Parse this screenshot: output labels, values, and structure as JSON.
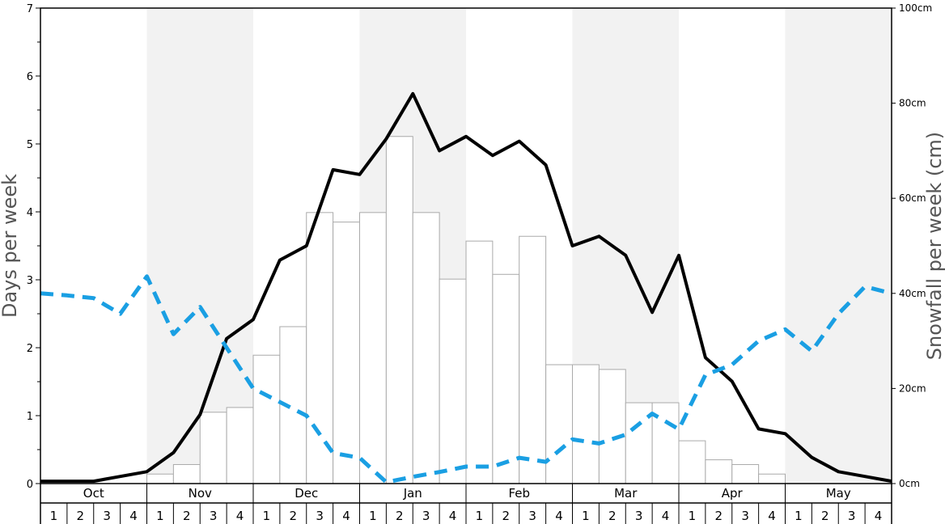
{
  "chart_data": {
    "type": "bar",
    "ylabel": "Days per week",
    "y2label": "Snowfall per week (cm)",
    "ylim": [
      0,
      7
    ],
    "y2lim": [
      0,
      100
    ],
    "y_ticks": [
      "0",
      "1",
      "2",
      "3",
      "4",
      "5",
      "6",
      "7"
    ],
    "y2_ticks": [
      "0cm",
      "20cm",
      "40cm",
      "60cm",
      "80cm",
      "100cm"
    ],
    "months": [
      "Oct",
      "Nov",
      "Dec",
      "Jan",
      "Feb",
      "Mar",
      "Apr",
      "May"
    ],
    "week_labels": [
      "1",
      "2",
      "3",
      "4"
    ],
    "colors": {
      "shade": "#f2f2f2",
      "bar_fill": "#ffffff",
      "bar_stroke": "#aaaaaa",
      "line_main": "#000000",
      "line_dashed": "#1a9fe3"
    },
    "series": [
      {
        "type": "bar",
        "axis": "right",
        "values": [
          0,
          0,
          0,
          0,
          2,
          4,
          15,
          16,
          27,
          33,
          57,
          55,
          57,
          73,
          57,
          43,
          51,
          44,
          52,
          25,
          25,
          24,
          17,
          17,
          9,
          5,
          4,
          2,
          0,
          0,
          0,
          0
        ]
      },
      {
        "type": "line",
        "axis": "right",
        "style": "solid",
        "values": [
          0.5,
          0.5,
          0.5,
          1.5,
          2.5,
          6.5,
          14.5,
          30.5,
          34.5,
          47,
          50,
          66,
          65,
          72.5,
          82,
          70,
          73,
          69,
          72,
          67,
          50,
          52,
          48,
          36,
          48,
          26.5,
          21.5,
          11.5,
          10.5,
          5.5,
          2.5,
          1.5,
          0.5
        ]
      },
      {
        "type": "line",
        "axis": "left",
        "style": "dashed",
        "values": [
          2.8,
          2.77,
          2.73,
          2.5,
          3.05,
          2.2,
          2.6,
          2.0,
          1.4,
          1.2,
          1.0,
          0.45,
          0.38,
          0.02,
          0.1,
          0.17,
          0.25,
          0.25,
          0.38,
          0.32,
          0.65,
          0.59,
          0.72,
          1.03,
          0.8,
          1.6,
          1.75,
          2.1,
          2.27,
          1.95,
          2.5,
          2.9,
          2.8
        ]
      }
    ]
  }
}
